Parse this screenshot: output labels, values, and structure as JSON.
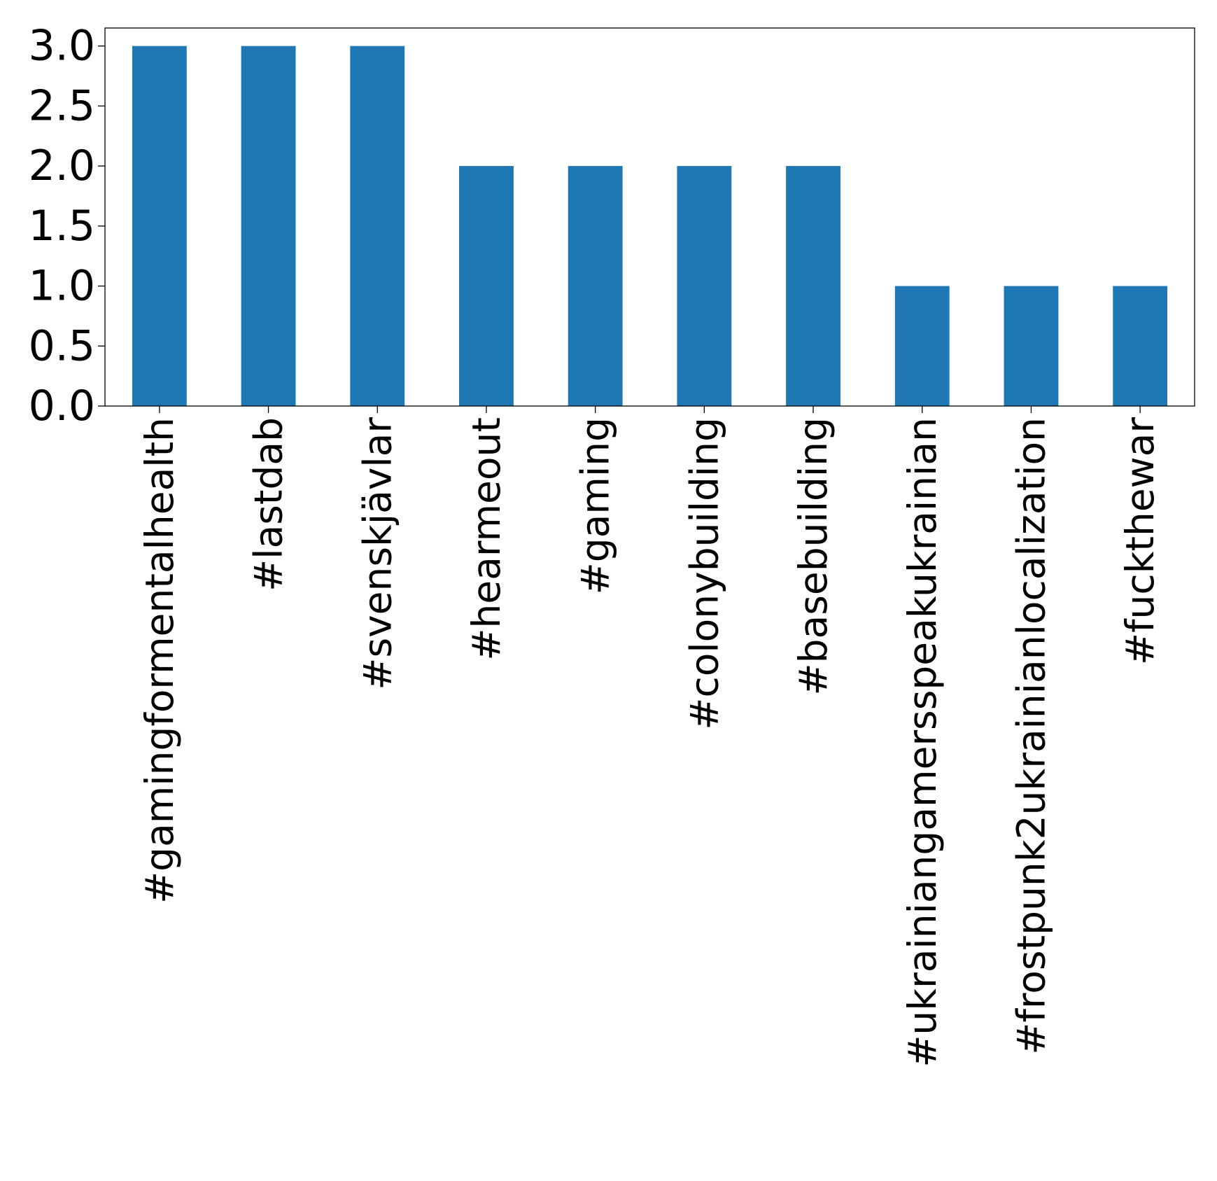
{
  "chart_data": {
    "type": "bar",
    "title": "",
    "xlabel": "",
    "ylabel": "",
    "categories": [
      "#gamingformentalhealth",
      "#lastdab",
      "#svenskjävlar",
      "#hearmeout",
      "#gaming",
      "#colonybuilding",
      "#basebuilding",
      "#ukrainiangamersspeakukrainian",
      "#frostpunk2ukrainianlocalization",
      "#fuckthewar"
    ],
    "values": [
      3,
      3,
      3,
      2,
      2,
      2,
      2,
      1,
      1,
      1
    ],
    "ylim": [
      0,
      3.15
    ],
    "yticks": [
      0.0,
      0.5,
      1.0,
      1.5,
      2.0,
      2.5,
      3.0
    ],
    "ytick_labels": [
      "0.0",
      "0.5",
      "1.0",
      "1.5",
      "2.0",
      "2.5",
      "3.0"
    ],
    "bar_color": "#1f77b4",
    "grid": false,
    "legend": "none"
  }
}
